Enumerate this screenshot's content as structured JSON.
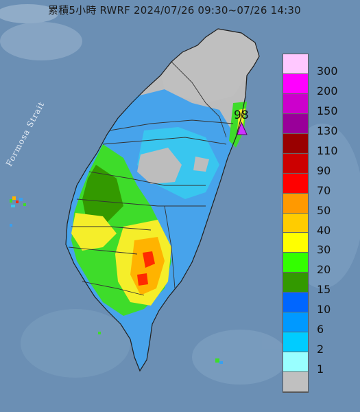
{
  "title": "累積5小時 RWRF 2024/07/26 09:30~07/26 14:30",
  "map_label": "Formosa Strait",
  "max_value_label": "98",
  "legend": [
    {
      "label": "300",
      "color": "#ffc8ff"
    },
    {
      "label": "200",
      "color": "#ff00ff"
    },
    {
      "label": "150",
      "color": "#cc00cc"
    },
    {
      "label": "130",
      "color": "#990099"
    },
    {
      "label": "110",
      "color": "#990000"
    },
    {
      "label": "90",
      "color": "#cc0000"
    },
    {
      "label": "70",
      "color": "#ff0000"
    },
    {
      "label": "50",
      "color": "#ff9900"
    },
    {
      "label": "40",
      "color": "#ffcc00"
    },
    {
      "label": "30",
      "color": "#ffff00"
    },
    {
      "label": "20",
      "color": "#33ff00"
    },
    {
      "label": "15",
      "color": "#339900"
    },
    {
      "label": "10",
      "color": "#0066ff"
    },
    {
      "label": "6",
      "color": "#0099ff"
    },
    {
      "label": "2",
      "color": "#00ccff"
    },
    {
      "label": "1",
      "color": "#99ffff"
    },
    {
      "label": "",
      "color": "#c0c0c0"
    }
  ]
}
